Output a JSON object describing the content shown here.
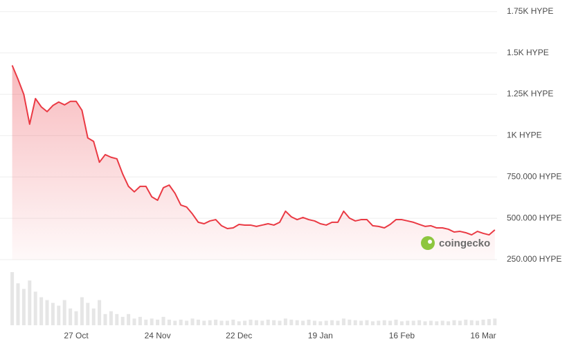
{
  "chart_data": {
    "type": "line",
    "categories": [
      null,
      null,
      null,
      null,
      null,
      null,
      null,
      null,
      null,
      null,
      null,
      "27 Oct",
      null,
      null,
      null,
      null,
      null,
      null,
      null,
      null,
      null,
      null,
      null,
      null,
      null,
      "24 Nov",
      null,
      null,
      null,
      null,
      null,
      null,
      null,
      null,
      null,
      null,
      null,
      null,
      null,
      "22 Dec",
      null,
      null,
      null,
      null,
      null,
      null,
      null,
      null,
      null,
      null,
      null,
      null,
      null,
      "19 Jan",
      null,
      null,
      null,
      null,
      null,
      null,
      null,
      null,
      null,
      null,
      null,
      null,
      null,
      "16 Feb",
      null,
      null,
      null,
      null,
      null,
      null,
      null,
      null,
      null,
      null,
      null,
      null,
      null,
      "16 Mar",
      null,
      null
    ],
    "series": [
      {
        "color": "#ea3943",
        "values": [
          1425,
          1341,
          1249,
          1069,
          1224,
          1174,
          1145,
          1182,
          1203,
          1186,
          1207,
          1207,
          1153,
          986,
          965,
          839,
          885,
          869,
          860,
          768,
          693,
          660,
          693,
          693,
          630,
          609,
          685,
          701,
          651,
          580,
          568,
          526,
          476,
          467,
          484,
          492,
          455,
          438,
          442,
          463,
          459,
          459,
          451,
          459,
          467,
          459,
          476,
          543,
          509,
          492,
          505,
          492,
          484,
          467,
          459,
          476,
          476,
          543,
          501,
          484,
          492,
          492,
          455,
          451,
          442,
          463,
          492,
          492,
          484,
          476,
          463,
          451,
          455,
          442,
          442,
          434,
          417,
          421,
          413,
          400,
          421,
          409,
          400,
          430
        ]
      },
      {
        "color": "#e6e6e6",
        "axis": "y2",
        "values": [
          95,
          75,
          65,
          80,
          60,
          50,
          45,
          40,
          35,
          45,
          30,
          25,
          50,
          40,
          30,
          45,
          20,
          25,
          20,
          15,
          20,
          12,
          15,
          10,
          12,
          10,
          15,
          10,
          8,
          10,
          8,
          12,
          10,
          8,
          9,
          10,
          8,
          8,
          10,
          7,
          8,
          10,
          9,
          8,
          10,
          9,
          8,
          12,
          10,
          9,
          8,
          10,
          8,
          7,
          8,
          9,
          8,
          12,
          10,
          9,
          8,
          9,
          7,
          8,
          9,
          8,
          10,
          7,
          8,
          8,
          9,
          7,
          8,
          7,
          8,
          7,
          9,
          8,
          10,
          9,
          8,
          10,
          11,
          12
        ]
      }
    ],
    "ylim": [
      250,
      1820
    ],
    "yticks": [
      {
        "value": 250,
        "label": "250.000 HYPE"
      },
      {
        "value": 500,
        "label": "500.000 HYPE"
      },
      {
        "value": 750,
        "label": "750.000 HYPE"
      },
      {
        "value": 1000,
        "label": "1K HYPE"
      },
      {
        "value": 1250,
        "label": "1.25K HYPE"
      },
      {
        "value": 1500,
        "label": "1.5K HYPE"
      },
      {
        "value": 1750,
        "label": "1.75K HYPE"
      }
    ],
    "y2lim": [
      0,
      100
    ],
    "grid": true,
    "watermark": "coingecko"
  }
}
